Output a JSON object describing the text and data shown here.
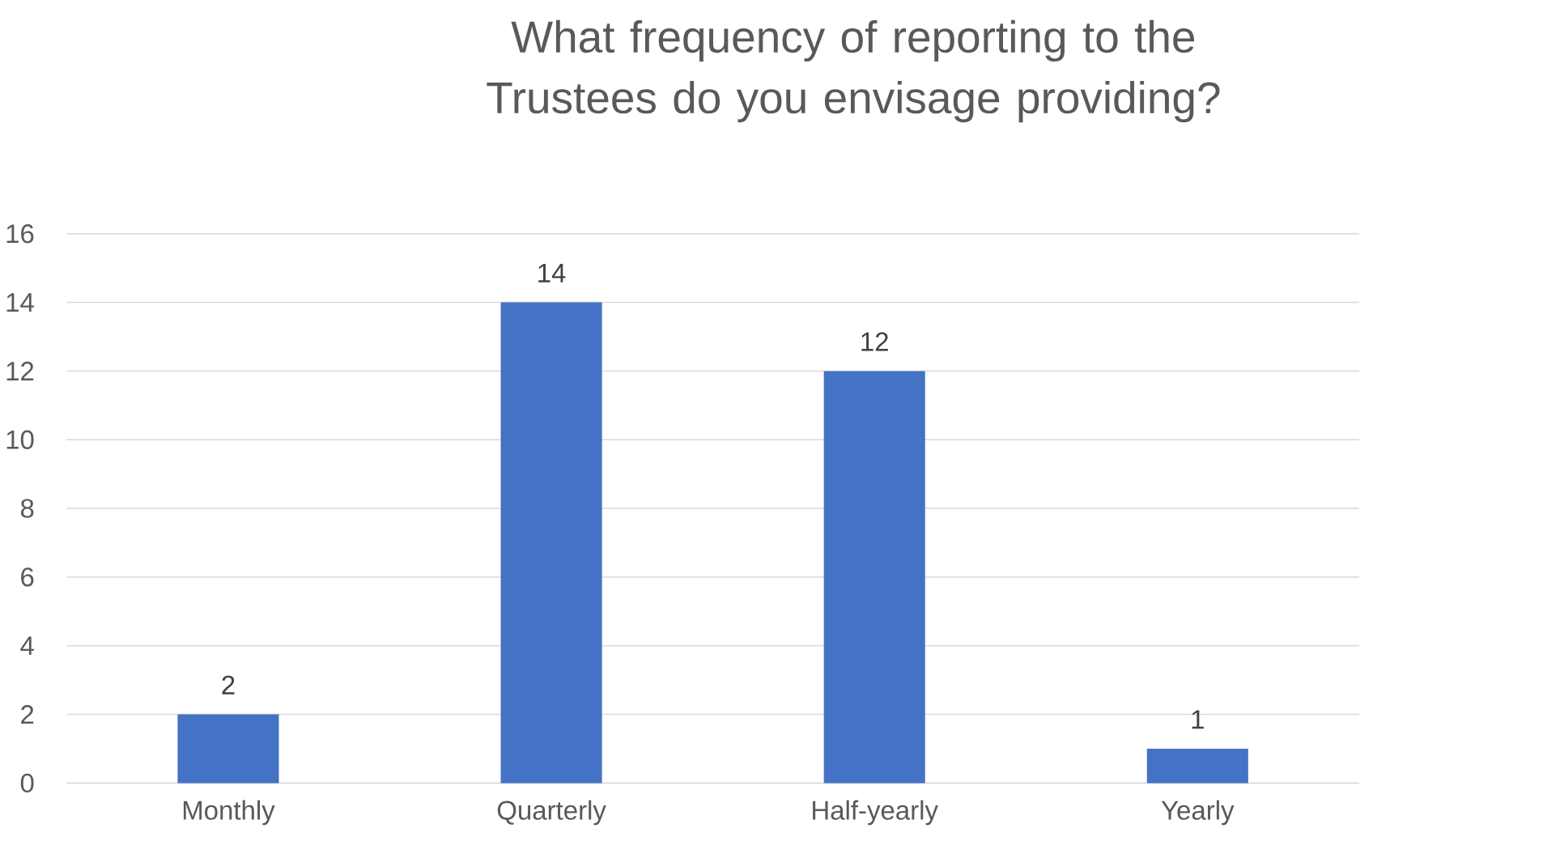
{
  "chart_data": {
    "type": "bar",
    "title": "What frequency of reporting to the Trustees do you envisage providing?",
    "categories": [
      "Monthly",
      "Quarterly",
      "Half-yearly",
      "Yearly"
    ],
    "values": [
      2,
      14,
      12,
      1
    ],
    "color": "#4472c4",
    "ylim": [
      0,
      16
    ],
    "yticks": [
      0,
      2,
      4,
      6,
      8,
      10,
      12,
      14,
      16
    ],
    "grid": "y",
    "data_labels": true
  }
}
